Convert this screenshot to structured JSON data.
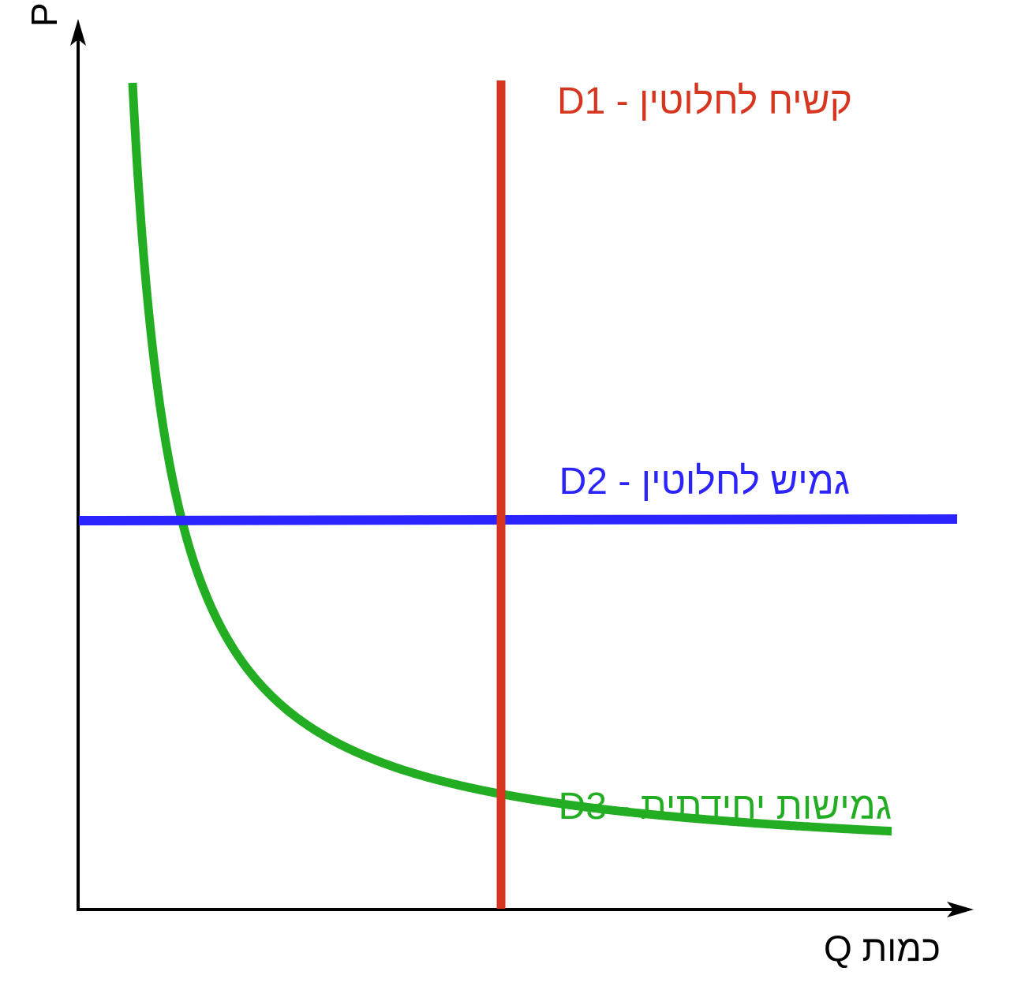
{
  "axes": {
    "y_label": "מחיר P",
    "x_label": "כמות Q"
  },
  "curves": [
    {
      "id": "d1",
      "label": "קשיח לחלוטין - D1",
      "color": "#d6351f"
    },
    {
      "id": "d2",
      "label": "גמיש לחלוטין - D2",
      "color": "#2b24ff"
    },
    {
      "id": "d3",
      "label": "גמישות יחידתית - D3",
      "color": "#22ad22"
    }
  ],
  "colors": {
    "axes": "#000000"
  }
}
